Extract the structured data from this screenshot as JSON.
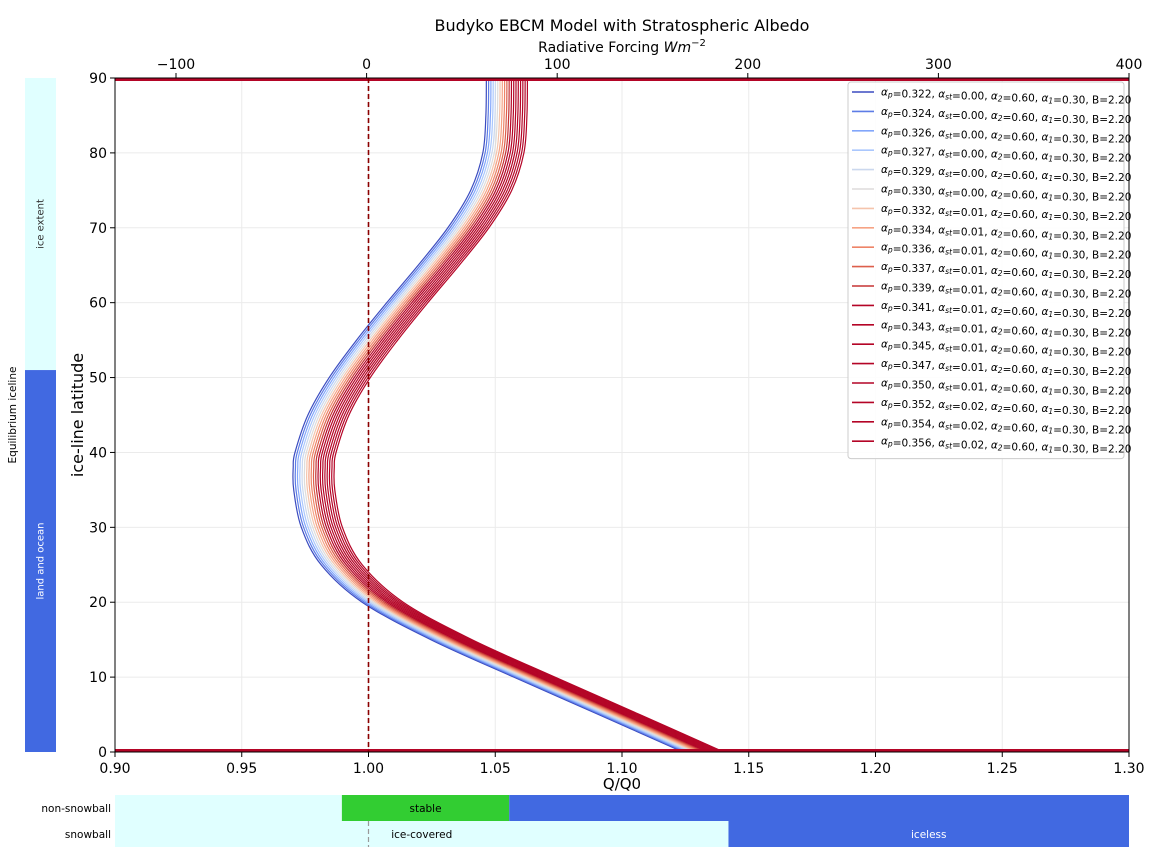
{
  "chart_data": {
    "type": "line",
    "title": "Budyko EBCM Model with Stratospheric Albedo",
    "xlabel": "Q/Q0",
    "ylabel": "ice-line latitude",
    "top_xlabel": "Radiative Forcing ",
    "top_xlabel_unit": "Wm",
    "top_xlabel_exp": "−2",
    "xlim": [
      0.9,
      1.3
    ],
    "ylim": [
      0,
      90
    ],
    "top_xlim": [
      -132,
      400
    ],
    "x_ticks": [
      0.9,
      0.95,
      1.0,
      1.05,
      1.1,
      1.15,
      1.2,
      1.25,
      1.3
    ],
    "x_tick_labels": [
      "0.90",
      "0.95",
      "1.00",
      "1.05",
      "1.10",
      "1.15",
      "1.20",
      "1.25",
      "1.30"
    ],
    "y_ticks": [
      0,
      10,
      20,
      30,
      40,
      50,
      60,
      70,
      80,
      90
    ],
    "y_tick_labels": [
      "0",
      "10",
      "20",
      "30",
      "40",
      "50",
      "60",
      "70",
      "80",
      "90"
    ],
    "top_ticks": [
      -100,
      0,
      100,
      200,
      300,
      400
    ],
    "top_tick_labels": [
      "−100",
      "0",
      "100",
      "200",
      "300",
      "400"
    ],
    "grid": true,
    "legend_position": "top-right",
    "vline_x": 1.0,
    "base_curve": {
      "latitude": [
        0,
        5,
        10,
        15,
        20,
        25,
        30,
        35,
        38,
        40,
        45,
        50,
        55,
        60,
        65,
        70,
        75,
        80,
        85,
        90
      ],
      "q_ratio": [
        1.124,
        1.0908,
        1.0573,
        1.0246,
        0.9975,
        0.9813,
        0.9735,
        0.9705,
        0.9703,
        0.971,
        0.9761,
        0.9845,
        0.9953,
        1.0072,
        1.0196,
        1.0313,
        1.0403,
        1.0451,
        1.0463,
        1.0465
      ]
    },
    "q_offsets": [
      0.0,
      0.0009,
      0.0018,
      0.0027,
      0.0036,
      0.0045,
      0.0054,
      0.0063,
      0.0072,
      0.0081,
      0.009,
      0.0099,
      0.0108,
      0.0117,
      0.0126,
      0.0135,
      0.0144,
      0.0153,
      0.0162
    ],
    "series": [
      {
        "ap": "0.322",
        "ast": "0.00",
        "color": "#3b4cc0"
      },
      {
        "ap": "0.324",
        "ast": "0.00",
        "color": "#5d7ce6"
      },
      {
        "ap": "0.326",
        "ast": "0.00",
        "color": "#82a6fb"
      },
      {
        "ap": "0.327",
        "ast": "0.00",
        "color": "#aac7fd"
      },
      {
        "ap": "0.329",
        "ast": "0.00",
        "color": "#cbd8ee"
      },
      {
        "ap": "0.330",
        "ast": "0.00",
        "color": "#dedcdb"
      },
      {
        "ap": "0.332",
        "ast": "0.01",
        "color": "#f5c4ac"
      },
      {
        "ap": "0.334",
        "ast": "0.01",
        "color": "#f6a385"
      },
      {
        "ap": "0.336",
        "ast": "0.01",
        "color": "#ee8468"
      },
      {
        "ap": "0.337",
        "ast": "0.01",
        "color": "#dd5f4b"
      },
      {
        "ap": "0.339",
        "ast": "0.01",
        "color": "#c53334"
      },
      {
        "ap": "0.341",
        "ast": "0.01",
        "color": "#b40426"
      },
      {
        "ap": "0.343",
        "ast": "0.01",
        "color": "#b40426"
      },
      {
        "ap": "0.345",
        "ast": "0.01",
        "color": "#b40426"
      },
      {
        "ap": "0.347",
        "ast": "0.01",
        "color": "#b40426"
      },
      {
        "ap": "0.350",
        "ast": "0.01",
        "color": "#b40426"
      },
      {
        "ap": "0.352",
        "ast": "0.02",
        "color": "#b40426"
      },
      {
        "ap": "0.354",
        "ast": "0.02",
        "color": "#b40426"
      },
      {
        "ap": "0.356",
        "ast": "0.02",
        "color": "#b40426"
      }
    ],
    "legend_common": {
      "a2": "0.60",
      "a1": "0.30",
      "B": "2.20"
    },
    "left_bar": {
      "title": "Equilibrium iceline",
      "segments": [
        {
          "label": "ice extent",
          "from": 51,
          "to": 90,
          "color": "#e0ffff",
          "text_color": "#333333"
        },
        {
          "label": "land and ocean",
          "from": 0,
          "to": 51,
          "color": "#4169e1",
          "text_color": "#ffffff"
        }
      ]
    },
    "bottom_bars": [
      {
        "label": "non-snowball",
        "segments": [
          {
            "label": "",
            "from": 0.9,
            "to": 0.9895,
            "color": "#e0ffff",
            "text_color": "#000000"
          },
          {
            "label": "stable",
            "from": 0.9895,
            "to": 1.0555,
            "color": "#32cd32",
            "text_color": "#000000"
          },
          {
            "label": "",
            "from": 1.0555,
            "to": 1.3,
            "color": "#4169e1",
            "text_color": "#ffffff"
          }
        ]
      },
      {
        "label": "snowball",
        "segments": [
          {
            "label": "ice-covered",
            "from": 0.9,
            "to": 1.142,
            "color": "#e0ffff",
            "text_color": "#000000"
          },
          {
            "label": "iceless",
            "from": 1.142,
            "to": 1.3,
            "color": "#4169e1",
            "text_color": "#ffffff"
          }
        ]
      }
    ],
    "colors": {
      "vline": "#8b0000",
      "hline": "#b40426",
      "grid": "#ebebeb"
    }
  }
}
